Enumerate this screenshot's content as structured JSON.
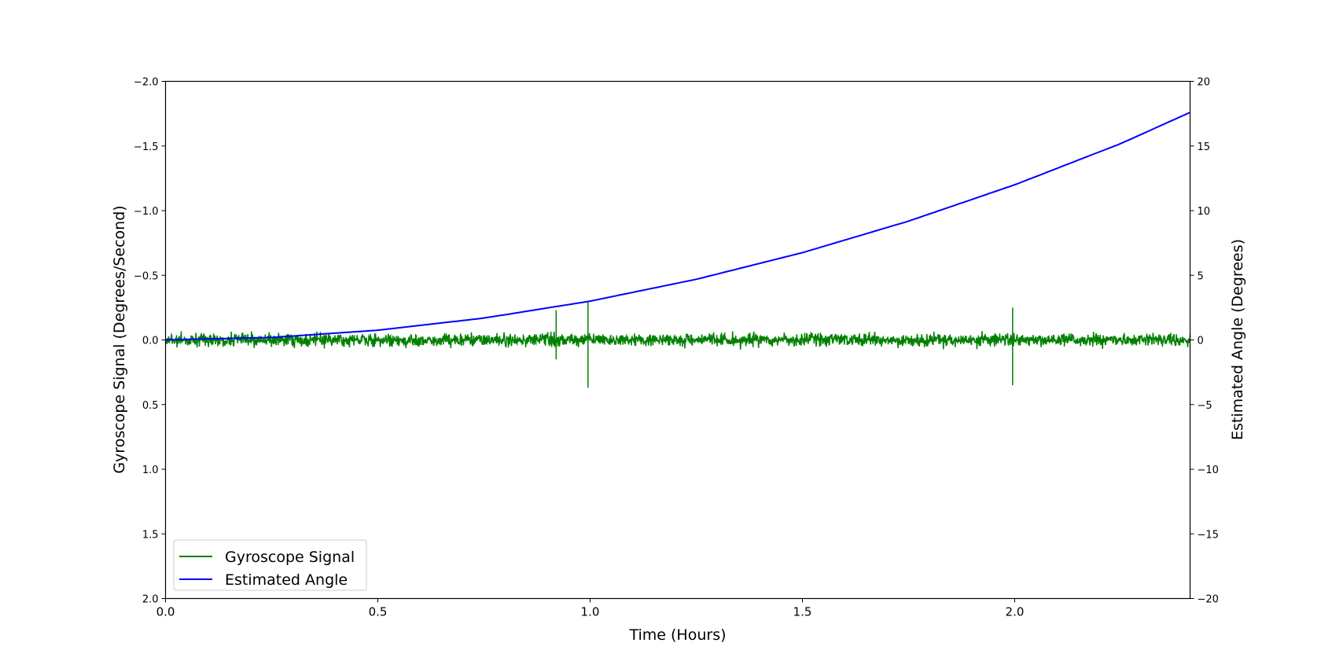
{
  "chart_data": {
    "type": "line",
    "title": "",
    "xlabel": "Time (Hours)",
    "ylabel_left": "Gyroscope Signal (Degrees/Second)",
    "ylabel_right": "Estimated Angle (Degrees)",
    "xlim": [
      0.0,
      2.413
    ],
    "ylim_left": [
      2.0,
      -2.0
    ],
    "ylim_right": [
      -20,
      20
    ],
    "left_axis_inverted": true,
    "grid": false,
    "legend_position": "lower left",
    "x_ticks": [
      "0.0",
      "0.5",
      "1.0",
      "1.5",
      "2.0"
    ],
    "x_tick_values": [
      0.0,
      0.5,
      1.0,
      1.5,
      2.0
    ],
    "y_left_ticks": [
      "−2.0",
      "−1.5",
      "−1.0",
      "−0.5",
      "0.0",
      "0.5",
      "1.0",
      "1.5",
      "2.0"
    ],
    "y_left_tick_values": [
      -2.0,
      -1.5,
      -1.0,
      -0.5,
      0.0,
      0.5,
      1.0,
      1.5,
      2.0
    ],
    "y_right_ticks": [
      "20",
      "15",
      "10",
      "5",
      "0",
      "−5",
      "−10",
      "−15",
      "−20"
    ],
    "y_right_tick_values": [
      20,
      15,
      10,
      5,
      0,
      -5,
      -10,
      -15,
      -20
    ],
    "series": [
      {
        "name": "Gyroscope Signal",
        "axis": "left",
        "color": "#008000",
        "description": "noise around 0 deg/s, amplitude about ±0.08, with spikes",
        "noise_amplitude": 0.08,
        "spikes": [
          {
            "x": 0.92,
            "min": -0.23,
            "max": 0.15
          },
          {
            "x": 0.995,
            "min": -0.29,
            "max": 0.37
          },
          {
            "x": 1.995,
            "min": -0.25,
            "max": 0.35
          }
        ]
      },
      {
        "name": "Estimated Angle",
        "axis": "right",
        "color": "#0000ff",
        "x": [
          0.0,
          0.25,
          0.5,
          0.75,
          1.0,
          1.25,
          1.5,
          1.75,
          2.0,
          2.25,
          2.413
        ],
        "values": [
          0.0,
          0.19,
          0.75,
          1.69,
          3.0,
          4.69,
          6.75,
          9.19,
          12.0,
          15.19,
          17.6
        ]
      }
    ]
  },
  "legend": {
    "items": [
      {
        "label": "Gyroscope Signal",
        "color": "#008000"
      },
      {
        "label": "Estimated Angle",
        "color": "#0000ff"
      }
    ]
  }
}
